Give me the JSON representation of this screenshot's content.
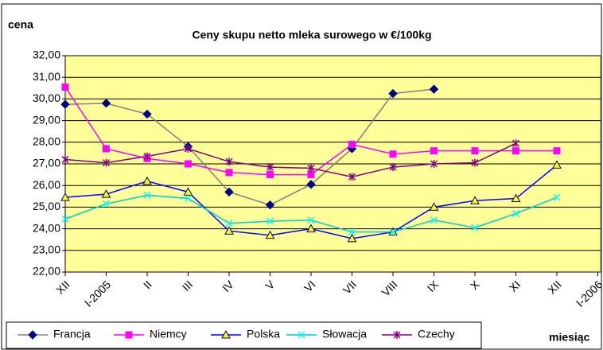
{
  "chart_data": {
    "type": "line",
    "title": "Ceny skupu netto mleka surowego  w €/100kg",
    "y_label": "cena",
    "x_label": "miesiąc",
    "categories": [
      "XII",
      "I-2005",
      "II",
      "III",
      "IV",
      "V",
      "VI",
      "VII",
      "VIII",
      "IX",
      "X",
      "XI",
      "XII",
      "I-2006"
    ],
    "series": [
      {
        "name": "Francja",
        "color": "#808080",
        "marker_color": "#000080",
        "marker": "diamond",
        "values": [
          29.75,
          29.8,
          29.3,
          27.8,
          25.7,
          25.1,
          26.05,
          27.7,
          30.25,
          30.45,
          null,
          null,
          null,
          null
        ]
      },
      {
        "name": "Niemcy",
        "color": "#ff00ff",
        "marker_color": "#ff00ff",
        "marker": "square",
        "values": [
          30.55,
          27.7,
          27.25,
          27.0,
          26.6,
          26.5,
          26.5,
          27.9,
          27.45,
          27.6,
          27.6,
          27.6,
          27.6,
          null
        ]
      },
      {
        "name": "Polska",
        "color": "#0000ff",
        "marker_color": "#ffff00",
        "marker": "triangle",
        "values": [
          25.45,
          25.6,
          26.2,
          25.7,
          23.9,
          23.7,
          24.0,
          23.55,
          23.85,
          25.0,
          25.3,
          25.4,
          26.95,
          null
        ]
      },
      {
        "name": "Słowacja",
        "color": "#00cccc",
        "marker_color": "#00ffff",
        "marker": "x",
        "values": [
          24.45,
          25.15,
          25.55,
          25.4,
          24.25,
          24.35,
          24.4,
          23.85,
          23.85,
          24.4,
          24.05,
          24.7,
          25.45,
          null
        ]
      },
      {
        "name": "Czechy",
        "color": "#800080",
        "marker_color": "#800080",
        "marker": "star",
        "values": [
          27.2,
          27.05,
          27.35,
          27.7,
          27.1,
          26.85,
          26.8,
          26.4,
          26.85,
          27.0,
          27.05,
          27.95,
          null,
          null
        ]
      }
    ],
    "ylim": [
      22,
      32
    ],
    "yticks": [
      {
        "value": 22,
        "label": "22,00"
      },
      {
        "value": 23,
        "label": "23,00"
      },
      {
        "value": 24,
        "label": "24,00"
      },
      {
        "value": 25,
        "label": "25,00"
      },
      {
        "value": 26,
        "label": "26,00"
      },
      {
        "value": 27,
        "label": "27,00"
      },
      {
        "value": 28,
        "label": "28,00"
      },
      {
        "value": 29,
        "label": "29,00"
      },
      {
        "value": 30,
        "label": "30,00"
      },
      {
        "value": 31,
        "label": "31,00"
      },
      {
        "value": 32,
        "label": "32,00"
      }
    ],
    "grid": true,
    "plot_background": "#ffff99",
    "legend": "bottom"
  }
}
